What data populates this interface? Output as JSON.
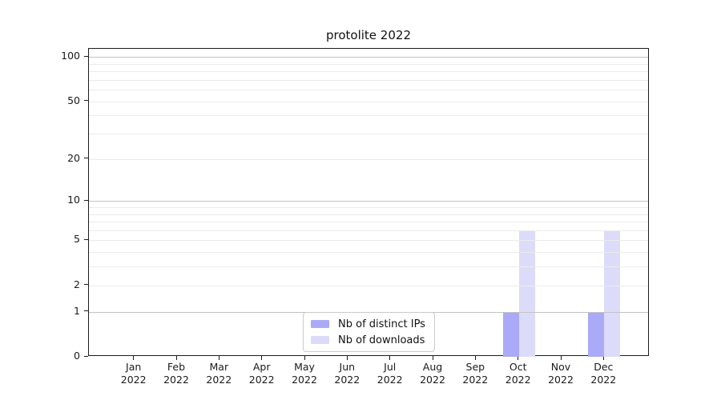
{
  "chart_data": {
    "type": "bar",
    "title": "protolite 2022",
    "categories": [
      "Jan",
      "Feb",
      "Mar",
      "Apr",
      "May",
      "Jun",
      "Jul",
      "Aug",
      "Sep",
      "Oct",
      "Nov",
      "Dec"
    ],
    "category_year": "2022",
    "series": [
      {
        "name": "Nb of distinct IPs",
        "color": "#aaaaf8",
        "values": [
          0,
          0,
          0,
          0,
          0,
          0,
          0,
          0,
          0,
          1,
          0,
          1
        ]
      },
      {
        "name": "Nb of downloads",
        "color": "#dcdcfa",
        "values": [
          0,
          0,
          0,
          0,
          0,
          0,
          0,
          0,
          0,
          6,
          0,
          6
        ]
      }
    ],
    "yscale": "log1p",
    "ylim": [
      0,
      100
    ],
    "yticks": [
      0,
      1,
      2,
      5,
      10,
      20,
      50,
      100
    ],
    "major_gridlines": [
      1,
      10,
      100
    ],
    "minor_gridlines": [
      2,
      3,
      4,
      5,
      6,
      7,
      8,
      9,
      20,
      30,
      40,
      50,
      60,
      70,
      80,
      90
    ],
    "grid": true,
    "legend_position": "bottom-center",
    "colors": {
      "axis": "#1b1b1b",
      "grid_major": "#c2c2c2",
      "grid_minor": "#ebebeb",
      "background": "#ffffff"
    }
  }
}
